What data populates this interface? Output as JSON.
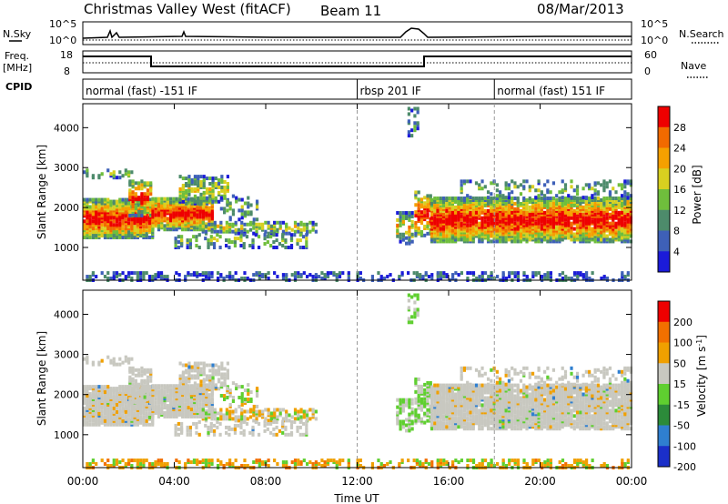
{
  "header": {
    "title": "Christmas Valley West (fitACF)",
    "beam": "Beam 11",
    "date": "08/Mar/2013"
  },
  "params": {
    "nsky_label": "N.Sky",
    "nsearch_label": "N.Search",
    "freq_label_line1": "Freq.",
    "freq_label_line2": "[MHz]",
    "nave_label": "Nave",
    "cpid_label": "CPID",
    "nsky_ticks": [
      "10^5",
      "10^0"
    ],
    "nsearch_ticks": [
      "10^5",
      "10^0"
    ],
    "freq_ticks": [
      "18",
      "8"
    ],
    "nave_ticks": [
      "60",
      "0"
    ]
  },
  "cpid_segments": [
    {
      "label": "normal (fast) -151 IF",
      "start_hour": 0
    },
    {
      "label": "rbsp 201 IF",
      "start_hour": 12
    },
    {
      "label": "normal (fast) 151 IF",
      "start_hour": 18
    }
  ],
  "chart_data": [
    {
      "type": "heatmap",
      "panel": "power",
      "xlabel": "",
      "ylabel": "Slant Range [km]",
      "xlim": [
        0,
        24
      ],
      "ylim": [
        180,
        4600
      ],
      "y_ticks": [
        1000,
        2000,
        3000,
        4000
      ],
      "x_ticks": [
        "00:00",
        "04:00",
        "08:00",
        "12:00",
        "16:00",
        "20:00",
        "00:00"
      ],
      "colorbar": {
        "label": "Power [dB]",
        "ticks": [
          "4",
          "8",
          "12",
          "16",
          "20",
          "24",
          "28"
        ],
        "colors": [
          "#1b1bd9",
          "#3e60b8",
          "#4d8b6b",
          "#6fbe3c",
          "#d8d020",
          "#f5a000",
          "#f26a00",
          "#ee0000"
        ]
      },
      "features": [
        {
          "name": "main echo band 00-03 UT",
          "x": [
            0,
            3
          ],
          "range_km": [
            1200,
            2200
          ],
          "level": "high"
        },
        {
          "name": "main echo band 03-05 UT",
          "x": [
            3,
            5.5
          ],
          "range_km": [
            1400,
            2300
          ],
          "level": "high"
        },
        {
          "name": "mid echoes 05-10 UT",
          "x": [
            5,
            10
          ],
          "range_km": [
            1000,
            1800
          ],
          "level": "medium"
        },
        {
          "name": "echo band 15-24 UT",
          "x": [
            15,
            24
          ],
          "range_km": [
            1100,
            2200
          ],
          "level": "high"
        },
        {
          "name": "near range clutter",
          "x": [
            0,
            24
          ],
          "range_km": [
            180,
            400
          ],
          "level": "low"
        }
      ]
    },
    {
      "type": "heatmap",
      "panel": "velocity",
      "xlabel": "Time UT",
      "ylabel": "Slant Range [km]",
      "xlim": [
        0,
        24
      ],
      "ylim": [
        180,
        4600
      ],
      "y_ticks": [
        1000,
        2000,
        3000,
        4000
      ],
      "x_ticks": [
        "00:00",
        "04:00",
        "08:00",
        "12:00",
        "16:00",
        "20:00",
        "00:00"
      ],
      "colorbar": {
        "label": "Velocity [m s^-1]",
        "ticks": [
          "200",
          "100",
          "50",
          "15",
          "-15",
          "-50",
          "-100",
          "-200"
        ],
        "colors": [
          "#1b2fc9",
          "#2f7fd0",
          "#2c8b3a",
          "#5fcf30",
          "#c8c8c0",
          "#f0a000",
          "#f27000",
          "#ee0000"
        ]
      }
    }
  ],
  "vertical_markers_hours": [
    12,
    18
  ]
}
